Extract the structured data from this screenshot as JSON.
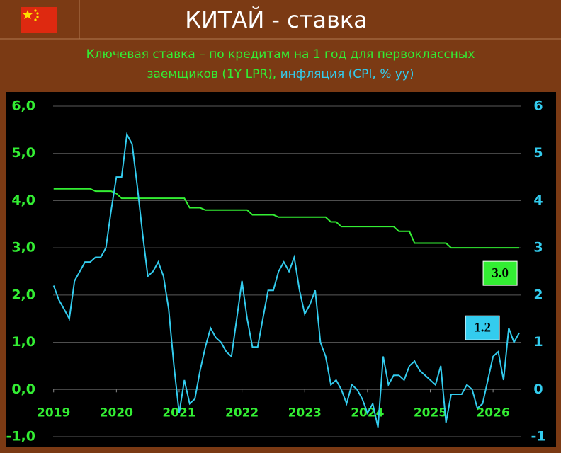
{
  "chart_data": {
    "type": "line",
    "title": "КИТАЙ - ставка",
    "x": [
      2019,
      2019.083,
      2019.167,
      2019.25,
      2019.333,
      2019.417,
      2019.5,
      2019.583,
      2019.667,
      2019.75,
      2019.833,
      2019.917,
      2020,
      2020.083,
      2020.167,
      2020.25,
      2020.333,
      2020.417,
      2020.5,
      2020.583,
      2020.667,
      2020.75,
      2020.833,
      2020.917,
      2021,
      2021.083,
      2021.167,
      2021.25,
      2021.333,
      2021.417,
      2021.5,
      2021.583,
      2021.667,
      2021.75,
      2021.833,
      2021.917,
      2022,
      2022.083,
      2022.167,
      2022.25,
      2022.333,
      2022.417,
      2022.5,
      2022.583,
      2022.667,
      2022.75,
      2022.833,
      2022.917,
      2023,
      2023.083,
      2023.167,
      2023.25,
      2023.333,
      2023.417,
      2023.5,
      2023.583,
      2023.667,
      2023.75,
      2023.833,
      2023.917,
      2024,
      2024.083,
      2024.167,
      2024.25,
      2024.333,
      2024.417,
      2024.5,
      2024.583,
      2024.667,
      2024.75,
      2024.833,
      2024.917,
      2025,
      2025.083,
      2025.167,
      2025.25,
      2025.333,
      2025.417,
      2025.5,
      2025.583,
      2025.667,
      2025.75,
      2025.833,
      2025.917,
      2026,
      2026.083,
      2026.167,
      2026.25,
      2026.333,
      2026.417
    ],
    "series": [
      {
        "name": "Ключевая ставка – по кредитам на 1 год для первоклассных заемщиков (1Y LPR),",
        "color": "#33ee33",
        "axis": "y",
        "values": [
          4.25,
          4.25,
          4.25,
          4.25,
          4.25,
          4.25,
          4.25,
          4.25,
          4.2,
          4.2,
          4.2,
          4.2,
          4.15,
          4.05,
          4.05,
          4.05,
          4.05,
          4.05,
          4.05,
          4.05,
          4.05,
          4.05,
          4.05,
          4.05,
          4.05,
          4.05,
          3.85,
          3.85,
          3.85,
          3.8,
          3.8,
          3.8,
          3.8,
          3.8,
          3.8,
          3.8,
          3.8,
          3.8,
          3.7,
          3.7,
          3.7,
          3.7,
          3.7,
          3.65,
          3.65,
          3.65,
          3.65,
          3.65,
          3.65,
          3.65,
          3.65,
          3.65,
          3.65,
          3.55,
          3.55,
          3.45,
          3.45,
          3.45,
          3.45,
          3.45,
          3.45,
          3.45,
          3.45,
          3.45,
          3.45,
          3.45,
          3.35,
          3.35,
          3.35,
          3.1,
          3.1,
          3.1,
          3.1,
          3.1,
          3.1,
          3.1,
          3,
          3,
          3,
          3,
          3,
          3,
          3,
          3,
          3,
          3,
          3,
          3,
          3,
          3
        ],
        "value_labels": [
          null,
          null,
          null,
          null,
          null,
          null,
          null,
          null,
          null,
          null,
          null,
          null,
          null,
          null,
          null,
          null,
          null,
          null,
          null,
          null,
          null,
          null,
          null,
          null,
          null,
          null,
          null,
          null,
          null,
          null,
          null,
          null,
          null,
          null,
          null,
          null,
          null,
          null,
          null,
          null,
          null,
          null,
          null,
          null,
          null,
          null,
          null,
          null,
          null,
          null,
          null,
          null,
          null,
          null,
          null,
          null,
          null,
          null,
          null,
          null,
          null,
          null,
          null,
          null,
          null,
          null,
          null,
          null,
          null,
          null,
          null,
          null,
          null,
          null,
          null,
          null,
          null,
          null,
          null,
          null,
          null,
          null,
          null,
          null,
          null,
          null,
          null,
          null,
          null,
          "3.0"
        ]
      },
      {
        "name": "инфляция (CPI, % yy)",
        "color": "#33ccee",
        "axis": "y2",
        "values": [
          2.2,
          1.9,
          1.7,
          1.5,
          2.3,
          2.5,
          2.7,
          2.7,
          2.8,
          2.8,
          3.0,
          3.8,
          4.5,
          4.5,
          5.4,
          5.2,
          4.3,
          3.3,
          2.4,
          2.5,
          2.7,
          2.4,
          1.7,
          0.5,
          -0.5,
          0.2,
          -0.3,
          -0.2,
          0.4,
          0.9,
          1.3,
          1.1,
          1.0,
          0.8,
          0.7,
          1.5,
          2.3,
          1.5,
          0.9,
          0.9,
          1.5,
          2.1,
          2.1,
          2.5,
          2.7,
          2.5,
          2.8,
          2.1,
          1.6,
          1.8,
          2.1,
          1.0,
          0.7,
          0.1,
          0.2,
          0.0,
          -0.3,
          0.1,
          0.0,
          -0.2,
          -0.5,
          -0.3,
          -0.8,
          0.7,
          0.1,
          0.3,
          0.3,
          0.2,
          0.5,
          0.6,
          0.4,
          0.3,
          0.2,
          0.1,
          0.5,
          -0.7,
          -0.1,
          -0.1,
          -0.1,
          0.1,
          0.0,
          -0.4,
          -0.3,
          0.2,
          0.7,
          0.8,
          0.2,
          1.3,
          1.0,
          1.2
        ],
        "value_labels": [
          null,
          null,
          null,
          null,
          null,
          null,
          null,
          null,
          null,
          null,
          null,
          null,
          null,
          null,
          null,
          null,
          null,
          null,
          null,
          null,
          null,
          null,
          null,
          null,
          null,
          null,
          null,
          null,
          null,
          null,
          null,
          null,
          null,
          null,
          null,
          null,
          null,
          null,
          null,
          null,
          null,
          null,
          null,
          null,
          null,
          null,
          null,
          null,
          null,
          null,
          null,
          null,
          null,
          null,
          null,
          null,
          null,
          null,
          null,
          null,
          null,
          null,
          null,
          null,
          null,
          null,
          null,
          null,
          null,
          null,
          null,
          null,
          null,
          null,
          null,
          null,
          null,
          null,
          null,
          null,
          null,
          null,
          null,
          null,
          null,
          null,
          null,
          null,
          null,
          "1.2"
        ]
      }
    ],
    "xlim": [
      2018.8,
      2026.45
    ],
    "xticks": [
      2019,
      2020,
      2021,
      2022,
      2023,
      2024,
      2025,
      2026
    ],
    "ylim": [
      -1,
      6
    ],
    "yticks": [
      {
        "value": -1,
        "label": "-1,0"
      },
      {
        "value": 0,
        "label": "0,0"
      },
      {
        "value": 1,
        "label": "1,0"
      },
      {
        "value": 2,
        "label": "2,0"
      },
      {
        "value": 3,
        "label": "3,0"
      },
      {
        "value": 4,
        "label": "4,0"
      },
      {
        "value": 5,
        "label": "5,0"
      },
      {
        "value": 6,
        "label": "6,0"
      }
    ],
    "y2lim": [
      -1,
      6
    ],
    "y2ticks": [
      -1,
      0,
      1,
      2,
      3,
      4,
      5,
      6
    ],
    "grid": true
  }
}
